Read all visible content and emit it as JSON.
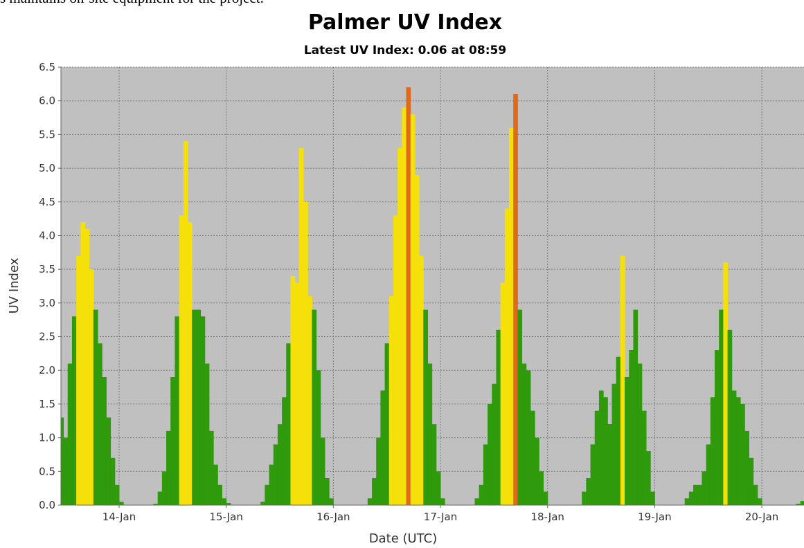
{
  "header_text": "s maintains on-site equipment for the project.",
  "chart_data": {
    "type": "bar",
    "title": "Palmer UV Index",
    "subtitle": "Latest UV Index: 0.06 at 08:59",
    "x_label": "Date (UTC)",
    "y_label": "UV Index",
    "grid": true,
    "color_levels": [
      {
        "from": 0,
        "color": "#2f9a0b"
      },
      {
        "from": 3,
        "color": "#f5e00a"
      },
      {
        "from": 6,
        "color": "#e0691a"
      }
    ],
    "xlim": [
      13.457,
      20.394
    ],
    "xticks": [
      {
        "value": 14,
        "label": "14-Jan"
      },
      {
        "value": 15,
        "label": "15-Jan"
      },
      {
        "value": 16,
        "label": "16-Jan"
      },
      {
        "value": 17,
        "label": "17-Jan"
      },
      {
        "value": 18,
        "label": "18-Jan"
      },
      {
        "value": 19,
        "label": "19-Jan"
      },
      {
        "value": 20,
        "label": "20-Jan"
      }
    ],
    "ylim": [
      0,
      6.5
    ],
    "yticks": [
      {
        "value": 0,
        "label": "0.0"
      },
      0.5,
      {
        "value": 1,
        "label": "1.0"
      },
      1.5,
      {
        "value": 2,
        "label": "2.0"
      },
      2.5,
      {
        "value": 3,
        "label": "3.0"
      },
      3.5,
      {
        "value": 4,
        "label": "4.0"
      },
      4.5,
      {
        "value": 5,
        "label": "5.0"
      },
      5.5,
      {
        "value": 6,
        "label": "6.0"
      },
      6.5
    ],
    "x": [
      13.46,
      13.5,
      13.54,
      13.58,
      13.62,
      13.66,
      13.7,
      13.74,
      13.78,
      13.82,
      13.86,
      13.9,
      13.94,
      13.98,
      14.02,
      14.06,
      14.1,
      14.14,
      14.18,
      14.22,
      14.26,
      14.3,
      14.34,
      14.38,
      14.42,
      14.46,
      14.5,
      14.54,
      14.58,
      14.62,
      14.66,
      14.7,
      14.74,
      14.78,
      14.82,
      14.86,
      14.9,
      14.94,
      14.98,
      15.02,
      15.06,
      15.1,
      15.14,
      15.18,
      15.22,
      15.26,
      15.3,
      15.34,
      15.38,
      15.42,
      15.46,
      15.5,
      15.54,
      15.58,
      15.62,
      15.66,
      15.7,
      15.74,
      15.78,
      15.82,
      15.86,
      15.9,
      15.94,
      15.98,
      16.02,
      16.06,
      16.1,
      16.14,
      16.18,
      16.22,
      16.26,
      16.3,
      16.34,
      16.38,
      16.42,
      16.46,
      16.5,
      16.54,
      16.58,
      16.62,
      16.66,
      16.7,
      16.74,
      16.78,
      16.82,
      16.86,
      16.9,
      16.94,
      16.98,
      17.02,
      17.06,
      17.1,
      17.14,
      17.18,
      17.22,
      17.26,
      17.3,
      17.34,
      17.38,
      17.42,
      17.46,
      17.5,
      17.54,
      17.58,
      17.62,
      17.66,
      17.7,
      17.74,
      17.78,
      17.82,
      17.86,
      17.9,
      17.94,
      17.98,
      18.02,
      18.06,
      18.1,
      18.14,
      18.18,
      18.22,
      18.26,
      18.3,
      18.34,
      18.38,
      18.42,
      18.46,
      18.5,
      18.54,
      18.58,
      18.62,
      18.66,
      18.7,
      18.74,
      18.78,
      18.82,
      18.86,
      18.9,
      18.94,
      18.98,
      19.02,
      19.06,
      19.1,
      19.14,
      19.18,
      19.22,
      19.26,
      19.3,
      19.34,
      19.38,
      19.42,
      19.46,
      19.5,
      19.54,
      19.58,
      19.62,
      19.66,
      19.7,
      19.74,
      19.78,
      19.82,
      19.86,
      19.9,
      19.94,
      19.98,
      20.02,
      20.06,
      20.1,
      20.14,
      20.18,
      20.22,
      20.26,
      20.3,
      20.34,
      20.38
    ],
    "values": [
      1.3,
      1.0,
      2.1,
      2.8,
      3.7,
      4.2,
      4.1,
      3.5,
      2.9,
      2.4,
      1.9,
      1.3,
      0.7,
      0.3,
      0.05,
      0,
      0,
      0,
      0,
      0,
      0,
      0,
      0.02,
      0.2,
      0.5,
      1.1,
      1.9,
      2.8,
      4.3,
      5.4,
      4.2,
      2.9,
      2.9,
      2.8,
      2.1,
      1.1,
      0.6,
      0.3,
      0.1,
      0.03,
      0,
      0,
      0,
      0,
      0,
      0,
      0,
      0.05,
      0.3,
      0.6,
      0.9,
      1.2,
      1.6,
      2.4,
      3.4,
      3.3,
      5.3,
      4.5,
      3.1,
      2.9,
      2.0,
      1.0,
      0.4,
      0.1,
      0,
      0,
      0,
      0,
      0,
      0,
      0,
      0,
      0.1,
      0.4,
      1.0,
      1.7,
      2.4,
      3.1,
      4.3,
      5.3,
      5.9,
      6.2,
      5.8,
      4.9,
      3.7,
      2.9,
      2.1,
      1.2,
      0.5,
      0.1,
      0,
      0,
      0,
      0,
      0,
      0,
      0,
      0.1,
      0.3,
      0.9,
      1.5,
      1.8,
      2.6,
      3.3,
      4.4,
      5.6,
      6.1,
      2.9,
      2.1,
      2.0,
      1.4,
      1.0,
      0.5,
      0.2,
      0,
      0,
      0,
      0,
      0,
      0,
      0,
      0,
      0.2,
      0.4,
      0.9,
      1.4,
      1.7,
      1.6,
      1.2,
      1.8,
      2.2,
      3.7,
      1.9,
      2.3,
      2.9,
      2.1,
      1.4,
      0.8,
      0.2,
      0,
      0,
      0,
      0,
      0,
      0,
      0,
      0.1,
      0.2,
      0.3,
      0.3,
      0.5,
      0.9,
      1.6,
      2.3,
      2.9,
      3.6,
      2.6,
      1.7,
      1.6,
      1.5,
      1.1,
      0.7,
      0.3,
      0.1,
      0,
      0,
      0,
      0,
      0,
      0,
      0,
      0,
      0.02,
      0.06
    ]
  }
}
